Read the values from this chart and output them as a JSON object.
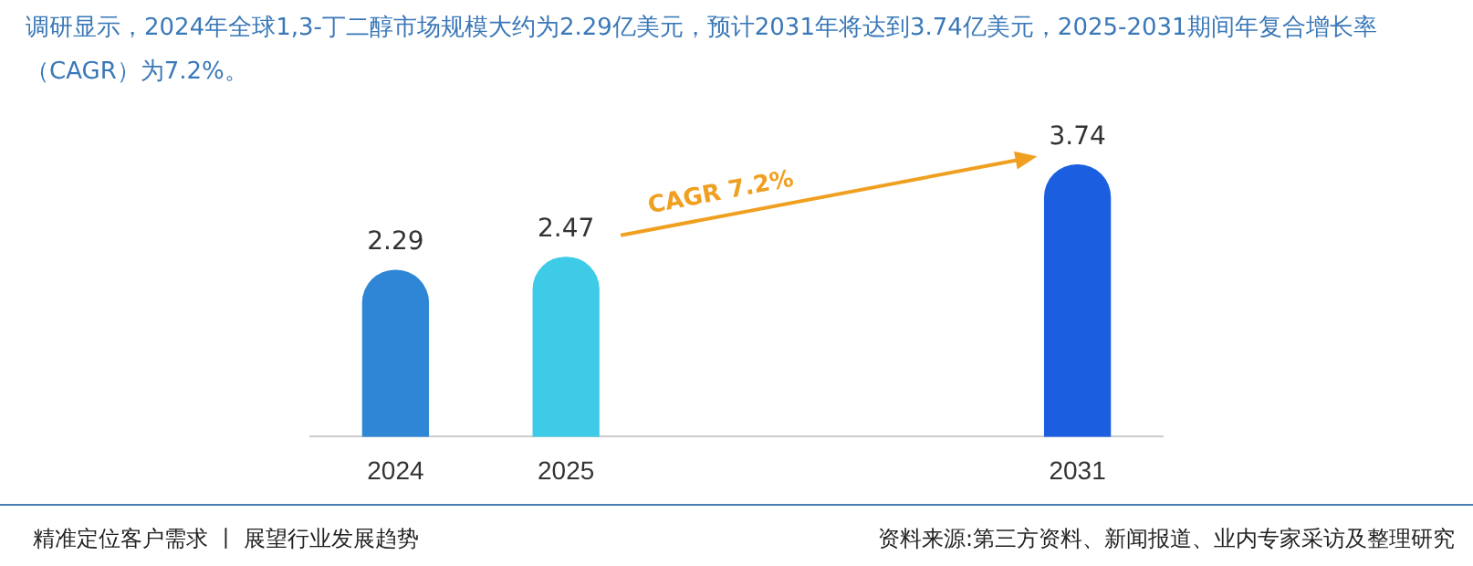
{
  "chart_data": {
    "type": "bar",
    "title": "调研显示，2024年全球1,3-丁二醇市场规模大约为2.29亿美元，预计2031年将达到3.74亿美元，2025-2031期间年复合增长率（CAGR）为7.2%。",
    "categories": [
      "2024",
      "2025",
      null,
      null,
      "2031"
    ],
    "values": [
      2.29,
      2.47,
      null,
      null,
      3.74
    ],
    "colors": [
      "#2f86d6",
      "#3ecbe8",
      "#2f86d6",
      "#2f86d6",
      "#1b5fe0"
    ],
    "data_labels": true,
    "annotations": [
      "CAGR 7.2%",
      "精准定位客户需求 丨 展望行业发展趋势",
      "资料来源:第三方资料、新闻报道、业内专家采访及整理研究"
    ]
  }
}
